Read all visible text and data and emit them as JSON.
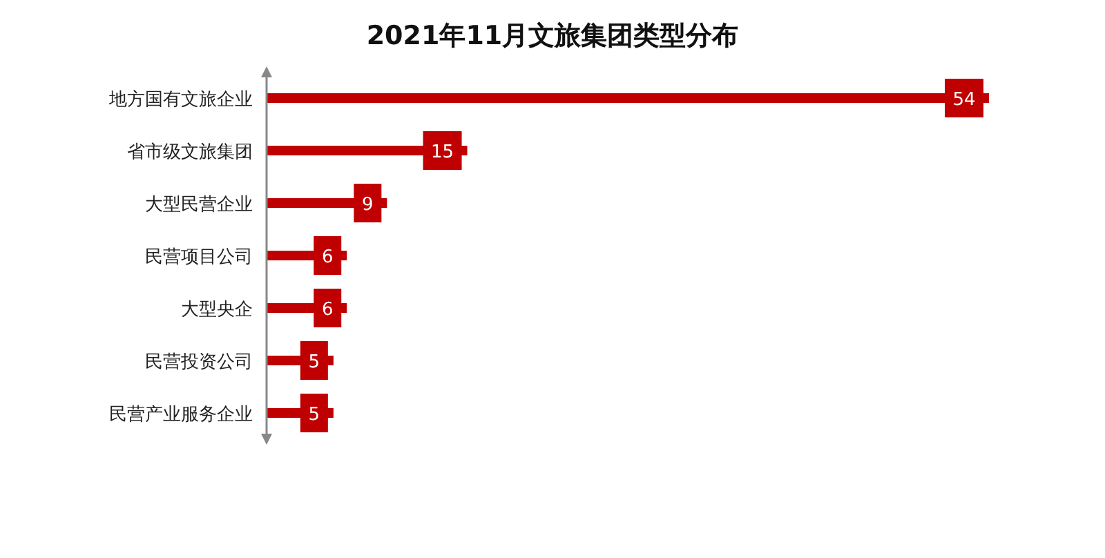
{
  "chart_data": {
    "type": "bar",
    "orientation": "horizontal",
    "title": "2021年11月文旅集团类型分布",
    "categories": [
      "地方国有文旅企业",
      "省市级文旅集团",
      "大型民营企业",
      "民营项目公司",
      "大型央企",
      "民营投资公司",
      "民营产业服务企业"
    ],
    "values": [
      54,
      15,
      9,
      6,
      6,
      5,
      5
    ],
    "color": "#c00000",
    "data_labels": true
  }
}
